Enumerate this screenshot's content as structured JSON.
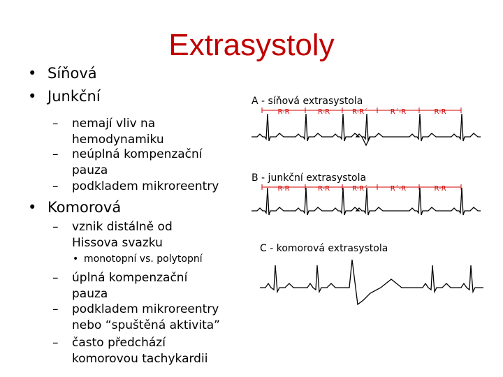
{
  "title": "Extrasystoly",
  "bullets": [
    {
      "marker": "•",
      "lines": [
        "Síňová"
      ]
    },
    {
      "marker": "•",
      "lines": [
        "Junkční"
      ]
    },
    {
      "marker": "–",
      "lines": [
        "nemají vliv na",
        "hemodynamiku"
      ]
    },
    {
      "marker": "–",
      "lines": [
        "neúplná kompenzační",
        "pauza"
      ]
    },
    {
      "marker": "–",
      "lines": [
        "podkladem mikroreentry"
      ]
    },
    {
      "marker": "•",
      "lines": [
        "Komorová"
      ]
    },
    {
      "marker": "–",
      "lines": [
        "vznik distálně od",
        "Hissova svazku"
      ]
    },
    {
      "marker": "•",
      "lines": [
        "monotopní vs. polytopní"
      ]
    },
    {
      "marker": "–",
      "lines": [
        "úplná kompenzační",
        "pauza"
      ]
    },
    {
      "marker": "–",
      "lines": [
        "podkladem mikroreentry",
        "nebo “spuštěná aktivita”"
      ]
    },
    {
      "marker": "–",
      "lines": [
        "často předchází",
        "komorovou tachykardii"
      ]
    }
  ],
  "figure": {
    "panels": [
      {
        "label": "A - síňová extrasystola",
        "intervals": [
          "R-R",
          "R-R",
          "R-R´",
          "R´-R",
          "R-R"
        ]
      },
      {
        "label": "B - junkční extrasystola",
        "intervals": [
          "R-R",
          "R-R",
          "R-R´",
          "R´-R",
          "R-R"
        ]
      },
      {
        "label": "C - komorová extrasystola"
      }
    ]
  }
}
